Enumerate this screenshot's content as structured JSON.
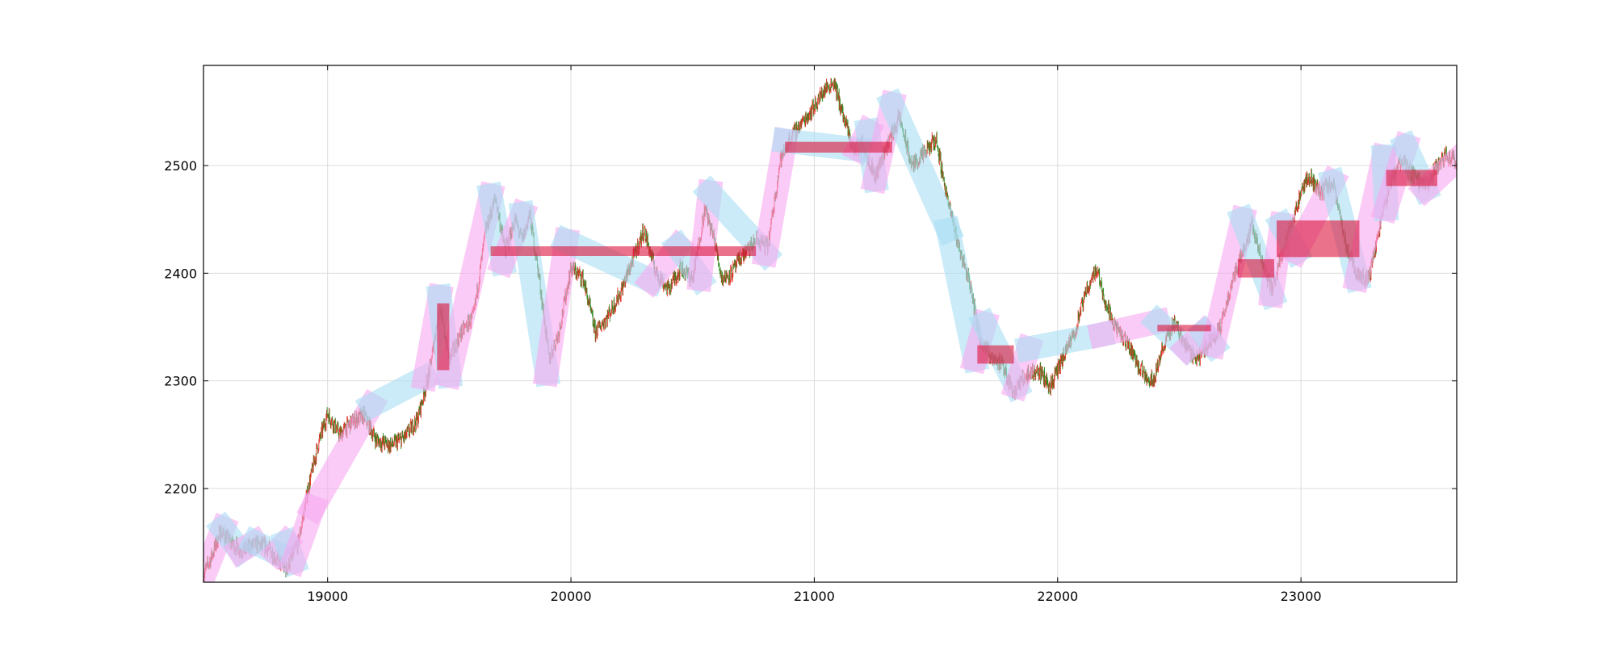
{
  "page": {
    "background": "#ffffff"
  },
  "chart_data": {
    "type": "candlestick",
    "title": "",
    "xlabel": "",
    "ylabel": "",
    "xlim": [
      18490,
      23640
    ],
    "ylim": [
      2113,
      2593
    ],
    "x_ticks": [
      19000,
      20000,
      21000,
      22000,
      23000
    ],
    "y_ticks": [
      2200,
      2300,
      2400,
      2500
    ],
    "x_tick_labels": [
      "19000",
      "20000",
      "21000",
      "22000",
      "23000"
    ],
    "y_tick_labels": [
      "2200",
      "2300",
      "2400",
      "2500"
    ],
    "grid": true,
    "legend": "none",
    "colors": {
      "up_candle": "#e8302a",
      "down_candle": "#2a8a1e",
      "up_stroke": "#f7a8f0",
      "down_stroke": "#a8def3",
      "stroke_corner": "#c2bff0",
      "pivot_zone": "#dc143c",
      "grid": "#dcdcdc",
      "axis": "#000000"
    },
    "price_anchors": [
      [
        18490,
        2120
      ],
      [
        18520,
        2135
      ],
      [
        18560,
        2160
      ],
      [
        18600,
        2150
      ],
      [
        18650,
        2142
      ],
      [
        18700,
        2148
      ],
      [
        18750,
        2146
      ],
      [
        18790,
        2135
      ],
      [
        18830,
        2125
      ],
      [
        18880,
        2150
      ],
      [
        18920,
        2200
      ],
      [
        18960,
        2240
      ],
      [
        19000,
        2270
      ],
      [
        19050,
        2250
      ],
      [
        19100,
        2262
      ],
      [
        19150,
        2268
      ],
      [
        19200,
        2245
      ],
      [
        19260,
        2240
      ],
      [
        19320,
        2248
      ],
      [
        19370,
        2265
      ],
      [
        19420,
        2310
      ],
      [
        19460,
        2370
      ],
      [
        19500,
        2320
      ],
      [
        19550,
        2345
      ],
      [
        19600,
        2360
      ],
      [
        19650,
        2440
      ],
      [
        19690,
        2470
      ],
      [
        19730,
        2420
      ],
      [
        19770,
        2450
      ],
      [
        19800,
        2430
      ],
      [
        19830,
        2455
      ],
      [
        19870,
        2395
      ],
      [
        19910,
        2320
      ],
      [
        19950,
        2345
      ],
      [
        20000,
        2405
      ],
      [
        20050,
        2395
      ],
      [
        20100,
        2345
      ],
      [
        20150,
        2360
      ],
      [
        20200,
        2380
      ],
      [
        20250,
        2410
      ],
      [
        20300,
        2440
      ],
      [
        20350,
        2400
      ],
      [
        20400,
        2385
      ],
      [
        20450,
        2405
      ],
      [
        20500,
        2395
      ],
      [
        20550,
        2460
      ],
      [
        20590,
        2430
      ],
      [
        20620,
        2395
      ],
      [
        20660,
        2400
      ],
      [
        20700,
        2415
      ],
      [
        20760,
        2430
      ],
      [
        20810,
        2425
      ],
      [
        20860,
        2505
      ],
      [
        20900,
        2525
      ],
      [
        20950,
        2540
      ],
      [
        21000,
        2555
      ],
      [
        21040,
        2570
      ],
      [
        21080,
        2578
      ],
      [
        21120,
        2545
      ],
      [
        21160,
        2515
      ],
      [
        21200,
        2520
      ],
      [
        21250,
        2490
      ],
      [
        21300,
        2520
      ],
      [
        21350,
        2545
      ],
      [
        21400,
        2500
      ],
      [
        21450,
        2510
      ],
      [
        21500,
        2525
      ],
      [
        21550,
        2465
      ],
      [
        21600,
        2420
      ],
      [
        21640,
        2390
      ],
      [
        21680,
        2340
      ],
      [
        21720,
        2325
      ],
      [
        21770,
        2315
      ],
      [
        21820,
        2290
      ],
      [
        21870,
        2305
      ],
      [
        21920,
        2310
      ],
      [
        21970,
        2295
      ],
      [
        22020,
        2320
      ],
      [
        22070,
        2345
      ],
      [
        22120,
        2385
      ],
      [
        22160,
        2405
      ],
      [
        22200,
        2370
      ],
      [
        22250,
        2345
      ],
      [
        22300,
        2330
      ],
      [
        22340,
        2310
      ],
      [
        22390,
        2300
      ],
      [
        22440,
        2335
      ],
      [
        22480,
        2355
      ],
      [
        22520,
        2335
      ],
      [
        22570,
        2320
      ],
      [
        22620,
        2335
      ],
      [
        22670,
        2350
      ],
      [
        22720,
        2395
      ],
      [
        22760,
        2420
      ],
      [
        22800,
        2445
      ],
      [
        22840,
        2410
      ],
      [
        22880,
        2385
      ],
      [
        22930,
        2425
      ],
      [
        22980,
        2460
      ],
      [
        23030,
        2490
      ],
      [
        23080,
        2475
      ],
      [
        23130,
        2485
      ],
      [
        23180,
        2430
      ],
      [
        23230,
        2400
      ],
      [
        23280,
        2395
      ],
      [
        23320,
        2440
      ],
      [
        23360,
        2480
      ],
      [
        23410,
        2505
      ],
      [
        23460,
        2490
      ],
      [
        23510,
        2480
      ],
      [
        23560,
        2500
      ],
      [
        23600,
        2510
      ],
      [
        23640,
        2505
      ]
    ],
    "strokes": [
      {
        "direction": "up",
        "x": [
          18490,
          18570
        ],
        "y": [
          2118,
          2163
        ]
      },
      {
        "direction": "down",
        "x": [
          18570,
          18640
        ],
        "y": [
          2163,
          2142
        ]
      },
      {
        "direction": "up",
        "x": [
          18640,
          18700
        ],
        "y": [
          2142,
          2150
        ]
      },
      {
        "direction": "down",
        "x": [
          18700,
          18790
        ],
        "y": [
          2150,
          2140
        ]
      },
      {
        "direction": "up",
        "x": [
          18790,
          18830
        ],
        "y": [
          2140,
          2150
        ]
      },
      {
        "direction": "down",
        "x": [
          18830,
          18860
        ],
        "y": [
          2150,
          2132
        ]
      },
      {
        "direction": "up",
        "x": [
          18860,
          18940
        ],
        "y": [
          2132,
          2182
        ]
      },
      {
        "direction": "up",
        "x": [
          18940,
          19180
        ],
        "y": [
          2182,
          2277
        ]
      },
      {
        "direction": "down",
        "x": [
          19180,
          19400
        ],
        "y": [
          2277,
          2303
        ]
      },
      {
        "direction": "up",
        "x": [
          19400,
          19460
        ],
        "y": [
          2303,
          2378
        ]
      },
      {
        "direction": "down",
        "x": [
          19460,
          19500
        ],
        "y": [
          2378,
          2305
        ]
      },
      {
        "direction": "up",
        "x": [
          19500,
          19670
        ],
        "y": [
          2305,
          2472
        ]
      },
      {
        "direction": "down",
        "x": [
          19670,
          19720
        ],
        "y": [
          2472,
          2410
        ]
      },
      {
        "direction": "up",
        "x": [
          19720,
          19800
        ],
        "y": [
          2410,
          2455
        ]
      },
      {
        "direction": "down",
        "x": [
          19800,
          19900
        ],
        "y": [
          2455,
          2307
        ]
      },
      {
        "direction": "up",
        "x": [
          19900,
          19980
        ],
        "y": [
          2307,
          2430
        ]
      },
      {
        "direction": "down",
        "x": [
          19980,
          20330
        ],
        "y": [
          2430,
          2393
        ]
      },
      {
        "direction": "up",
        "x": [
          20330,
          20440
        ],
        "y": [
          2393,
          2425
        ]
      },
      {
        "direction": "down",
        "x": [
          20440,
          20530
        ],
        "y": [
          2425,
          2395
        ]
      },
      {
        "direction": "up",
        "x": [
          20530,
          20570
        ],
        "y": [
          2395,
          2475
        ]
      },
      {
        "direction": "down",
        "x": [
          20570,
          20800
        ],
        "y": [
          2475,
          2418
        ]
      },
      {
        "direction": "up",
        "x": [
          20800,
          20880
        ],
        "y": [
          2418,
          2523
        ]
      },
      {
        "direction": "down",
        "x": [
          20880,
          21180
        ],
        "y": [
          2523,
          2515
        ]
      },
      {
        "direction": "up",
        "x": [
          21180,
          21220
        ],
        "y": [
          2515,
          2532
        ]
      },
      {
        "direction": "down",
        "x": [
          21220,
          21250
        ],
        "y": [
          2532,
          2487
        ]
      },
      {
        "direction": "up",
        "x": [
          21250,
          21320
        ],
        "y": [
          2487,
          2557
        ]
      },
      {
        "direction": "down",
        "x": [
          21320,
          21550
        ],
        "y": [
          2557,
          2440
        ]
      },
      {
        "direction": "down",
        "x": [
          21550,
          21660
        ],
        "y": [
          2440,
          2320
        ]
      },
      {
        "direction": "up",
        "x": [
          21660,
          21700
        ],
        "y": [
          2320,
          2353
        ]
      },
      {
        "direction": "down",
        "x": [
          21700,
          21830
        ],
        "y": [
          2353,
          2295
        ]
      },
      {
        "direction": "up",
        "x": [
          21830,
          21880
        ],
        "y": [
          2295,
          2330
        ]
      },
      {
        "direction": "down",
        "x": [
          21880,
          22180
        ],
        "y": [
          2330,
          2343
        ]
      },
      {
        "direction": "up",
        "x": [
          22180,
          22410
        ],
        "y": [
          2343,
          2355
        ]
      },
      {
        "direction": "down",
        "x": [
          22410,
          22530
        ],
        "y": [
          2355,
          2330
        ]
      },
      {
        "direction": "up",
        "x": [
          22530,
          22600
        ],
        "y": [
          2330,
          2345
        ]
      },
      {
        "direction": "down",
        "x": [
          22600,
          22640
        ],
        "y": [
          2345,
          2333
        ]
      },
      {
        "direction": "up",
        "x": [
          22640,
          22760
        ],
        "y": [
          2333,
          2450
        ]
      },
      {
        "direction": "down",
        "x": [
          22760,
          22880
        ],
        "y": [
          2450,
          2380
        ]
      },
      {
        "direction": "up",
        "x": [
          22880,
          22920
        ],
        "y": [
          2380,
          2445
        ]
      },
      {
        "direction": "down",
        "x": [
          22920,
          22980
        ],
        "y": [
          2445,
          2420
        ]
      },
      {
        "direction": "up",
        "x": [
          22980,
          23130
        ],
        "y": [
          2420,
          2485
        ]
      },
      {
        "direction": "down",
        "x": [
          23130,
          23230
        ],
        "y": [
          2485,
          2395
        ]
      },
      {
        "direction": "up",
        "x": [
          23230,
          23340
        ],
        "y": [
          2395,
          2508
        ]
      },
      {
        "direction": "down",
        "x": [
          23340,
          23350
        ],
        "y": [
          2508,
          2460
        ]
      },
      {
        "direction": "up",
        "x": [
          23350,
          23430
        ],
        "y": [
          2460,
          2518
        ]
      },
      {
        "direction": "down",
        "x": [
          23430,
          23510
        ],
        "y": [
          2518,
          2478
        ]
      },
      {
        "direction": "up",
        "x": [
          23510,
          23640
        ],
        "y": [
          2478,
          2505
        ]
      }
    ],
    "pivot_zones": [
      {
        "x": [
          19450,
          19500
        ],
        "y": [
          2310,
          2372
        ]
      },
      {
        "x": [
          19670,
          20760
        ],
        "y": [
          2416,
          2425
        ]
      },
      {
        "x": [
          20880,
          21320
        ],
        "y": [
          2512,
          2522
        ]
      },
      {
        "x": [
          21670,
          21820
        ],
        "y": [
          2316,
          2333
        ]
      },
      {
        "x": [
          22410,
          22630
        ],
        "y": [
          2346,
          2352
        ]
      },
      {
        "x": [
          22740,
          22890
        ],
        "y": [
          2396,
          2413
        ]
      },
      {
        "x": [
          22900,
          23240
        ],
        "y": [
          2415,
          2449
        ]
      },
      {
        "x": [
          23350,
          23560
        ],
        "y": [
          2481,
          2496
        ]
      }
    ]
  }
}
